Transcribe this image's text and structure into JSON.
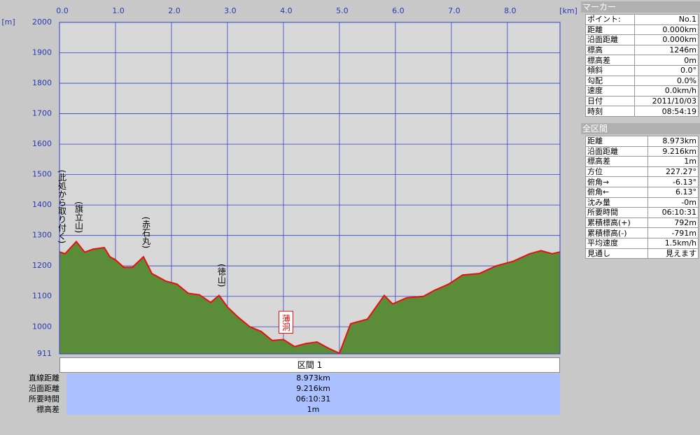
{
  "chart_data": {
    "type": "area",
    "x_unit": "[km]",
    "y_unit": "[m]",
    "color": "#5b8c38",
    "line_color": "#e81010",
    "grid": true,
    "x": [
      0,
      0.1,
      0.3,
      0.45,
      0.6,
      0.8,
      0.9,
      1.0,
      1.15,
      1.3,
      1.5,
      1.65,
      1.9,
      2.1,
      2.3,
      2.5,
      2.7,
      2.85,
      3.0,
      3.2,
      3.4,
      3.6,
      3.8,
      4.0,
      4.2,
      4.4,
      4.6,
      4.8,
      5.0,
      5.2,
      5.5,
      5.8,
      5.95,
      6.2,
      6.5,
      6.7,
      6.95,
      7.2,
      7.5,
      7.8,
      8.1,
      8.4,
      8.6,
      8.8,
      8.94
    ],
    "values": [
      1246,
      1240,
      1280,
      1245,
      1255,
      1260,
      1230,
      1220,
      1195,
      1195,
      1230,
      1175,
      1150,
      1140,
      1110,
      1105,
      1080,
      1103,
      1065,
      1030,
      1000,
      985,
      955,
      958,
      935,
      945,
      950,
      930,
      913,
      1010,
      1025,
      1103,
      1075,
      1095,
      1100,
      1120,
      1140,
      1170,
      1175,
      1200,
      1215,
      1240,
      1250,
      1240,
      1246
    ],
    "xlim": [
      0,
      8.94
    ],
    "ylim": [
      911,
      2000
    ],
    "xticks": [
      {
        "value": 0,
        "label": "0.0"
      },
      {
        "value": 1,
        "label": "1.0"
      },
      {
        "value": 2,
        "label": "2.0"
      },
      {
        "value": 3,
        "label": "3.0"
      },
      {
        "value": 4,
        "label": "4.0"
      },
      {
        "value": 5,
        "label": "5.0"
      },
      {
        "value": 6,
        "label": "6.0"
      },
      {
        "value": 7,
        "label": "7.0"
      },
      {
        "value": 8,
        "label": "8.0"
      }
    ],
    "yticks": [
      911,
      1000,
      1100,
      1200,
      1300,
      1400,
      1500,
      1600,
      1700,
      1800,
      1900,
      2000
    ],
    "annotations": [
      {
        "text": "(此処から取り付く)",
        "x": 0
      },
      {
        "text": "(旗立山)",
        "x": 0.3
      },
      {
        "text": "(赤石丸)",
        "x": 1.5
      },
      {
        "text": "(徳山)",
        "x": 2.85
      },
      {
        "text": "薄洞",
        "x": 4.0,
        "boxed": true
      }
    ]
  },
  "section": {
    "title": "区間 1",
    "rows": [
      [
        "直線距離",
        "8.973km"
      ],
      [
        "沿面距離",
        "9.216km"
      ],
      [
        "所要時間",
        "06:10:31"
      ],
      [
        "標高差",
        "1m"
      ]
    ]
  },
  "marker": {
    "title": "マーカー",
    "rows": [
      [
        "ポイント:",
        "No.1"
      ],
      [
        "距離",
        "0.000km"
      ],
      [
        "沿面距離",
        "0.000km"
      ],
      [
        "標高",
        "1246m"
      ],
      [
        "標高差",
        "0m"
      ],
      [
        "傾斜",
        "0.0°"
      ],
      [
        "勾配",
        "0.0%"
      ],
      [
        "速度",
        "0.0km/h"
      ],
      [
        "日付",
        "2011/10/03"
      ],
      [
        "時刻",
        "08:54:19"
      ]
    ]
  },
  "all": {
    "title": "全区間",
    "rows": [
      [
        "距離",
        "8.973km"
      ],
      [
        "沿面距離",
        "9.216km"
      ],
      [
        "標高差",
        "1m"
      ],
      [
        "方位",
        "227.27°"
      ],
      [
        "俯角→",
        "-6.13°"
      ],
      [
        "俯角←",
        "6.13°"
      ],
      [
        "沈み量",
        "-0m"
      ],
      [
        "所要時間",
        "06:10:31"
      ],
      [
        "累積標高(+)",
        "792m"
      ],
      [
        "累積標高(-)",
        "-791m"
      ],
      [
        "平均速度",
        "1.5km/h"
      ],
      [
        "見通し",
        "見えます"
      ]
    ]
  }
}
